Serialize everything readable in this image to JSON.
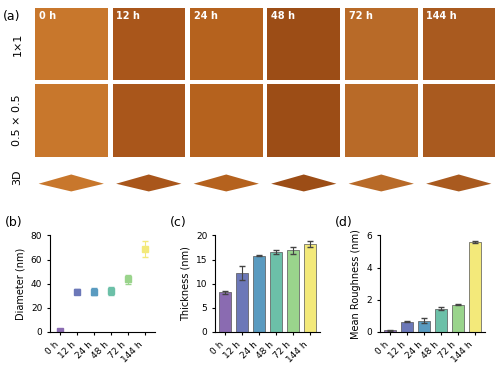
{
  "panel_a": {
    "label": "(a)",
    "columns": [
      "0 h",
      "12 h",
      "24 h",
      "48 h",
      "72 h",
      "144 h"
    ],
    "rows": [
      "1×1",
      "0.5 × 0.5",
      "3D"
    ]
  },
  "chart_data": [
    {
      "type": "scatter",
      "label": "(b)",
      "y_label": "Diameter (nm)",
      "marker": "s",
      "categories": [
        "0 h",
        "12 h",
        "24 h",
        "48 h",
        "72 h",
        "144 h"
      ],
      "values": [
        0.5,
        33.5,
        33.5,
        34,
        43.5,
        68.5
      ],
      "errors": [
        0.5,
        2,
        3,
        3.5,
        3.5,
        6.5
      ],
      "colors": [
        "#8a6bb1",
        "#6c78b8",
        "#5a9bc0",
        "#6cc0a8",
        "#9ad48c",
        "#f3e97a"
      ],
      "ylim": [
        0,
        80
      ],
      "yticks": [
        0,
        20,
        40,
        60,
        80
      ]
    },
    {
      "type": "bar",
      "label": "(c)",
      "y_label": "Thickness (nm)",
      "categories": [
        "0 h",
        "12 h",
        "24 h",
        "48 h",
        "72 h",
        "144 h"
      ],
      "values": [
        8.2,
        12.2,
        15.8,
        16.5,
        16.9,
        18.3
      ],
      "errors": [
        0.3,
        1.5,
        0.1,
        0.4,
        0.7,
        0.6
      ],
      "colors": [
        "#8a6bb1",
        "#6c78b8",
        "#5a9bc0",
        "#6cc0a8",
        "#9ad48c",
        "#f3e97a"
      ],
      "ylim": [
        0,
        20
      ],
      "yticks": [
        0,
        5,
        10,
        15,
        20
      ]
    },
    {
      "type": "bar",
      "label": "(d)",
      "y_label": "Mean Roughness (nm)",
      "categories": [
        "0 h",
        "12 h",
        "24 h",
        "48 h",
        "72 h",
        "144 h"
      ],
      "values": [
        0.1,
        0.65,
        0.7,
        1.45,
        1.7,
        5.6
      ],
      "errors": [
        0.03,
        0.03,
        0.15,
        0.1,
        0.05,
        0.05
      ],
      "colors": [
        "#8a6bb1",
        "#6c78b8",
        "#5a9bc0",
        "#6cc0a8",
        "#9ad48c",
        "#f3e97a"
      ],
      "ylim": [
        0,
        6
      ],
      "yticks": [
        0,
        2,
        4,
        6
      ]
    }
  ]
}
